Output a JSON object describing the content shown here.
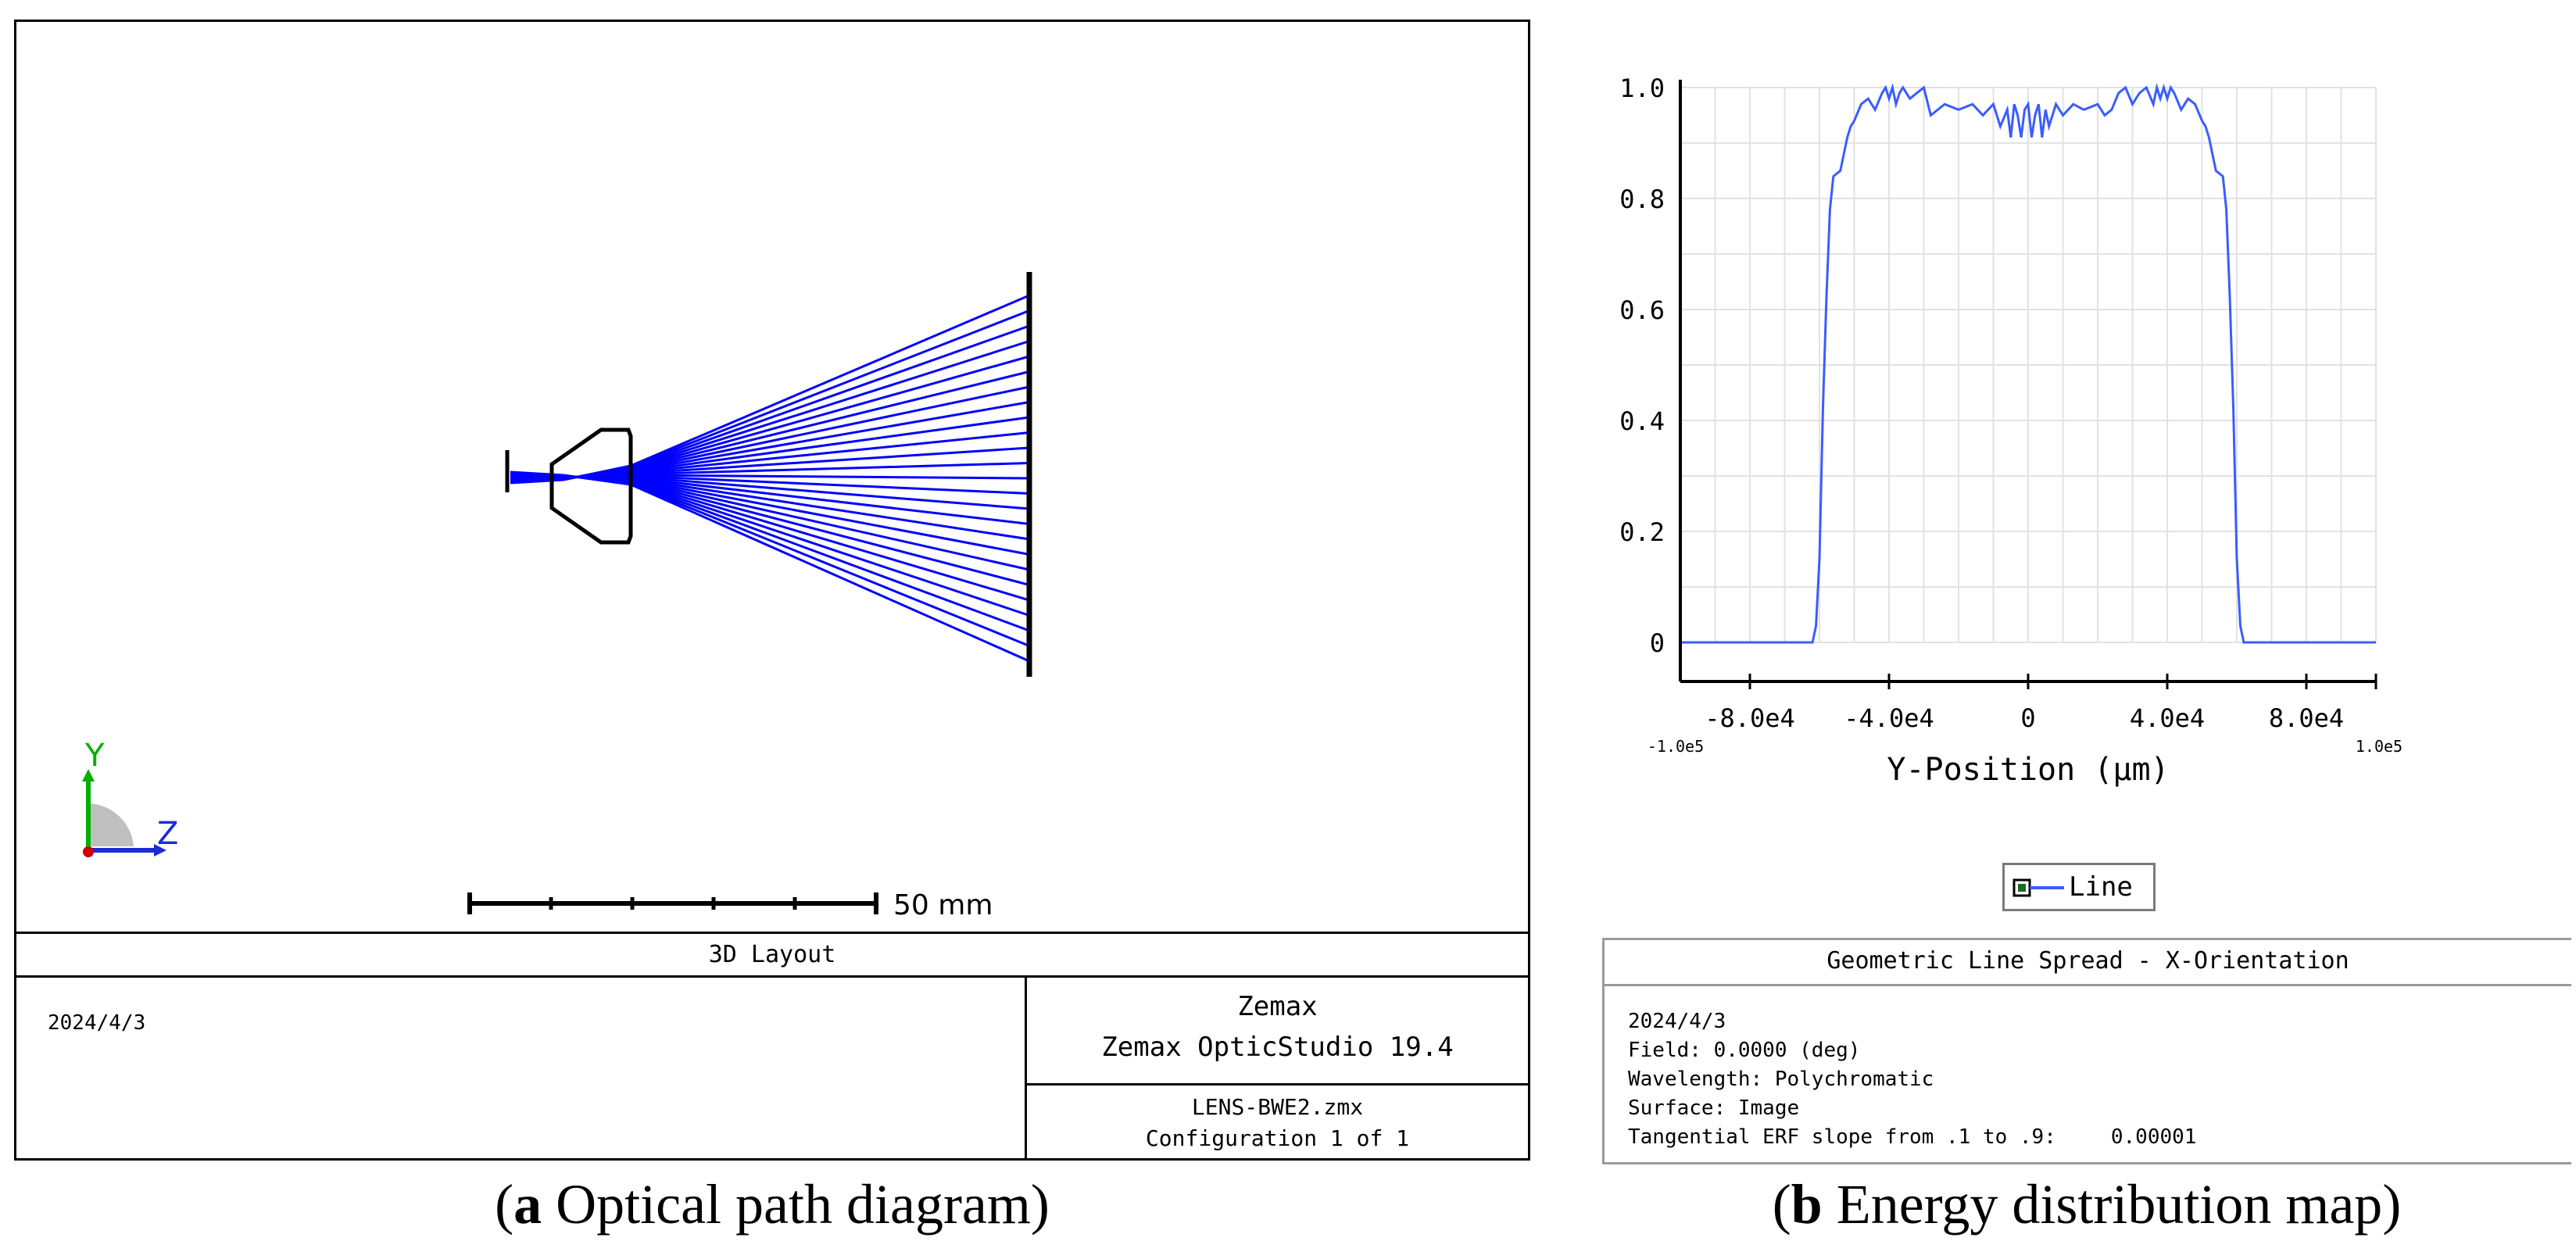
{
  "panel_a": {
    "axis_y": "Y",
    "axis_z": "Z",
    "scale_label": "50 mm",
    "title": "3D Layout",
    "date": "2024/4/3",
    "company": "Zemax",
    "product": "Zemax OpticStudio 19.4",
    "file": "LENS-BWE2.zmx",
    "config": "Configuration 1 of 1",
    "ray_color": "#0000ff",
    "caption_letter": "a",
    "caption_text": " Optical path diagram"
  },
  "panel_b": {
    "title": "Geometric Line Spread - X-Orientation",
    "info": {
      "date": "2024/4/3",
      "field": "Field: 0.0000 (deg)",
      "wavelength": "Wavelength: Polychromatic",
      "surface": "Surface: Image",
      "erf": "Tangential ERF slope from .1 to .9:",
      "erf_value": "0.00001"
    },
    "legend": "Line",
    "caption_letter": "b",
    "caption_text": " Energy distribution map"
  },
  "chart_data": {
    "type": "line",
    "xlabel": "Y-Position (µm)",
    "ylabel": "",
    "xlim": [
      -100000,
      100000
    ],
    "ylim": [
      0,
      1.0
    ],
    "x_tick_labels": [
      "-8.0e4",
      "-4.0e4",
      "0",
      "4.0e4",
      "8.0e4"
    ],
    "x_ticks": [
      -80000,
      -40000,
      0,
      40000,
      80000
    ],
    "x_min_label": "-1.0e5",
    "x_max_label": "1.0e5",
    "y_tick_labels": [
      "0",
      "0.2",
      "0.4",
      "0.6",
      "0.8",
      "1.0"
    ],
    "y_ticks": [
      0,
      0.2,
      0.4,
      0.6,
      0.8,
      1.0
    ],
    "grid": true,
    "line_color": "#3b5cff",
    "series": [
      {
        "name": "Line",
        "x": [
          -100000,
          -62000,
          -61000,
          -60000,
          -59000,
          -58000,
          -57000,
          -56000,
          -54000,
          -52000,
          -51000,
          -50000,
          -48000,
          -46000,
          -44000,
          -42000,
          -41000,
          -40000,
          -39000,
          -38000,
          -37000,
          -36000,
          -34000,
          -32000,
          -30000,
          -28000,
          -24000,
          -20000,
          -16000,
          -13000,
          -10000,
          -8000,
          -6000,
          -5000,
          -4000,
          -3000,
          -2000,
          -1000,
          0,
          1000,
          2000,
          3000,
          4000,
          5000,
          6000,
          8000,
          10000,
          13000,
          16000,
          20000,
          22000,
          24000,
          26000,
          28000,
          30000,
          32000,
          34000,
          36000,
          37000,
          38000,
          39000,
          40000,
          41000,
          42000,
          44000,
          46000,
          48000,
          50000,
          51000,
          52000,
          54000,
          56000,
          57000,
          58000,
          59000,
          60000,
          61000,
          62000,
          100000
        ],
        "values": [
          0,
          0,
          0.03,
          0.15,
          0.42,
          0.62,
          0.78,
          0.84,
          0.85,
          0.91,
          0.93,
          0.94,
          0.97,
          0.98,
          0.96,
          0.99,
          1.0,
          0.98,
          1.0,
          0.97,
          0.99,
          1.0,
          0.98,
          0.99,
          1.0,
          0.95,
          0.97,
          0.96,
          0.97,
          0.95,
          0.97,
          0.93,
          0.96,
          0.91,
          0.97,
          0.95,
          0.91,
          0.96,
          0.97,
          0.91,
          0.95,
          0.97,
          0.91,
          0.96,
          0.93,
          0.97,
          0.95,
          0.97,
          0.96,
          0.97,
          0.95,
          0.96,
          0.99,
          1.0,
          0.97,
          0.99,
          1.0,
          0.97,
          1.0,
          0.98,
          1.0,
          0.98,
          1.0,
          0.99,
          0.96,
          0.98,
          0.97,
          0.94,
          0.93,
          0.91,
          0.85,
          0.84,
          0.78,
          0.62,
          0.42,
          0.15,
          0.03,
          0,
          0
        ]
      }
    ]
  }
}
